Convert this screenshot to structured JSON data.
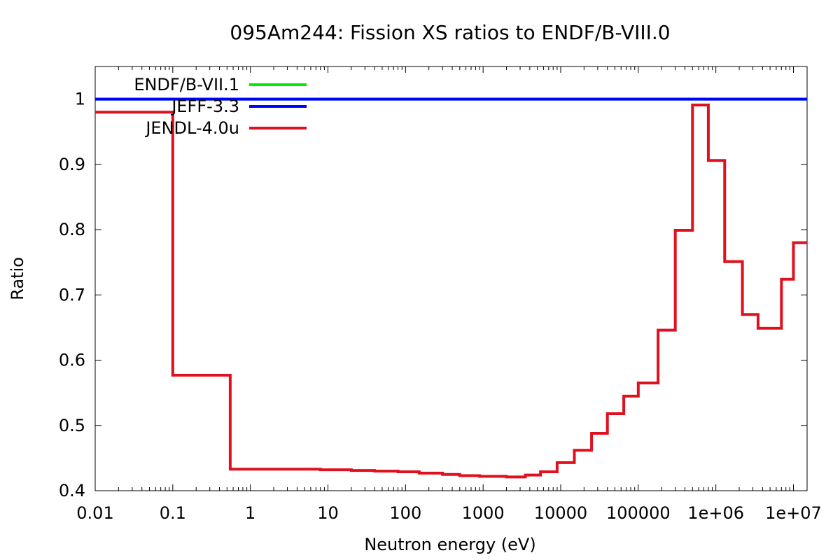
{
  "chart_data": {
    "type": "line",
    "title": "095Am244: Fission XS ratios to ENDF/B-VIII.0",
    "xlabel": "Neutron energy (eV)",
    "ylabel": "Ratio",
    "xscale": "log",
    "xlim": [
      0.01,
      15000000
    ],
    "ylim": [
      0.4,
      1.05
    ],
    "xticks": [
      {
        "value": 0.01,
        "label": "0.01"
      },
      {
        "value": 0.1,
        "label": "0.1"
      },
      {
        "value": 1,
        "label": "1"
      },
      {
        "value": 10,
        "label": "10"
      },
      {
        "value": 100,
        "label": "100"
      },
      {
        "value": 1000,
        "label": "1000"
      },
      {
        "value": 10000,
        "label": "10000"
      },
      {
        "value": 100000,
        "label": "100000"
      },
      {
        "value": 1000000,
        "label": "1e+06"
      },
      {
        "value": 10000000,
        "label": "1e+07"
      }
    ],
    "yticks": [
      {
        "value": 0.4,
        "label": "0.4"
      },
      {
        "value": 0.5,
        "label": "0.5"
      },
      {
        "value": 0.6,
        "label": "0.6"
      },
      {
        "value": 0.7,
        "label": "0.7"
      },
      {
        "value": 0.8,
        "label": "0.8"
      },
      {
        "value": 0.9,
        "label": "0.9"
      },
      {
        "value": 1.0,
        "label": "1"
      }
    ],
    "grid": false,
    "legend_position": "top-left",
    "series": [
      {
        "name": "ENDF/B-VII.1",
        "color": "#00ee00",
        "step": true,
        "x": [
          0.01,
          15000000
        ],
        "y": [
          1.0,
          1.0
        ]
      },
      {
        "name": "JEFF-3.3",
        "color": "#0000ff",
        "step": true,
        "x": [
          0.01,
          15000000
        ],
        "y": [
          1.0,
          1.0
        ]
      },
      {
        "name": "JENDL-4.0u",
        "color": "#e0101e",
        "step": true,
        "x": [
          0.01,
          0.1,
          0.55,
          4,
          8,
          20,
          40,
          80,
          150,
          300,
          500,
          900,
          2000,
          3500,
          5500,
          9000,
          15000,
          25000,
          40000,
          65000,
          100000,
          180000,
          300000,
          500000,
          800000,
          1300000,
          2200000,
          3500000,
          7000000,
          10000000,
          15000000
        ],
        "y": [
          0.98,
          0.577,
          0.433,
          0.433,
          0.432,
          0.431,
          0.43,
          0.429,
          0.427,
          0.425,
          0.423,
          0.422,
          0.421,
          0.424,
          0.429,
          0.443,
          0.462,
          0.488,
          0.518,
          0.545,
          0.565,
          0.646,
          0.799,
          0.991,
          0.906,
          0.751,
          0.67,
          0.649,
          0.724,
          0.78,
          0.78
        ]
      }
    ]
  }
}
